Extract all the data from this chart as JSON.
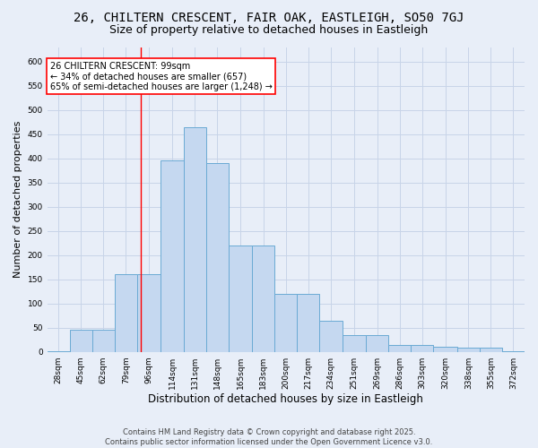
{
  "title": "26, CHILTERN CRESCENT, FAIR OAK, EASTLEIGH, SO50 7GJ",
  "subtitle": "Size of property relative to detached houses in Eastleigh",
  "xlabel": "Distribution of detached houses by size in Eastleigh",
  "ylabel": "Number of detached properties",
  "bar_edges": [
    28,
    45,
    62,
    79,
    96,
    114,
    131,
    148,
    165,
    183,
    200,
    217,
    234,
    251,
    269,
    286,
    303,
    320,
    338,
    355,
    372,
    389
  ],
  "bar_heights": [
    2,
    45,
    45,
    160,
    160,
    395,
    465,
    390,
    220,
    220,
    120,
    120,
    65,
    35,
    35,
    15,
    15,
    10,
    8,
    8,
    2
  ],
  "bar_color": "#c5d8f0",
  "bar_edge_color": "#6aaad4",
  "bar_linewidth": 0.7,
  "red_line_x": 99,
  "red_line_color": "red",
  "annotation_text": "26 CHILTERN CRESCENT: 99sqm\n← 34% of detached houses are smaller (657)\n65% of semi-detached houses are larger (1,248) →",
  "annotation_box_color": "white",
  "annotation_box_edge": "red",
  "ylim": [
    0,
    630
  ],
  "yticks": [
    0,
    50,
    100,
    150,
    200,
    250,
    300,
    350,
    400,
    450,
    500,
    550,
    600
  ],
  "background_color": "#e8eef8",
  "grid_color": "#c8d4e8",
  "footer_text": "Contains HM Land Registry data © Crown copyright and database right 2025.\nContains public sector information licensed under the Open Government Licence v3.0.",
  "title_fontsize": 10,
  "subtitle_fontsize": 9,
  "xlabel_fontsize": 8.5,
  "ylabel_fontsize": 8,
  "tick_fontsize": 6.5,
  "footer_fontsize": 6
}
